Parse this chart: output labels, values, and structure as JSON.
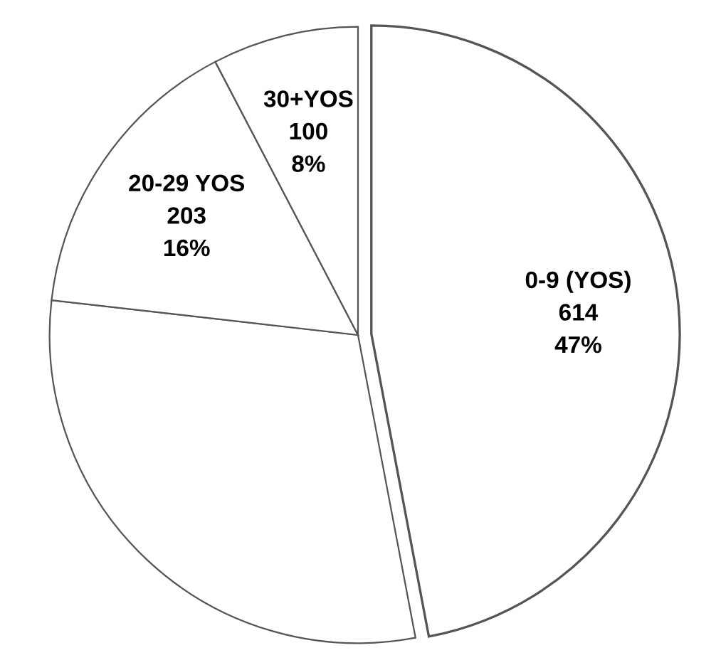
{
  "chart_data": {
    "type": "pie",
    "categories": [
      "0-9 (YOS)",
      null,
      "20-29 YOS",
      "30+YOS"
    ],
    "values": [
      614,
      389,
      203,
      100
    ],
    "value_labels": [
      "614\n47%",
      null,
      "203\n16%",
      "100\n8%"
    ],
    "colors": [
      "#ffffff",
      "#ffffff",
      "#ffffff",
      "#ffffff"
    ]
  }
}
